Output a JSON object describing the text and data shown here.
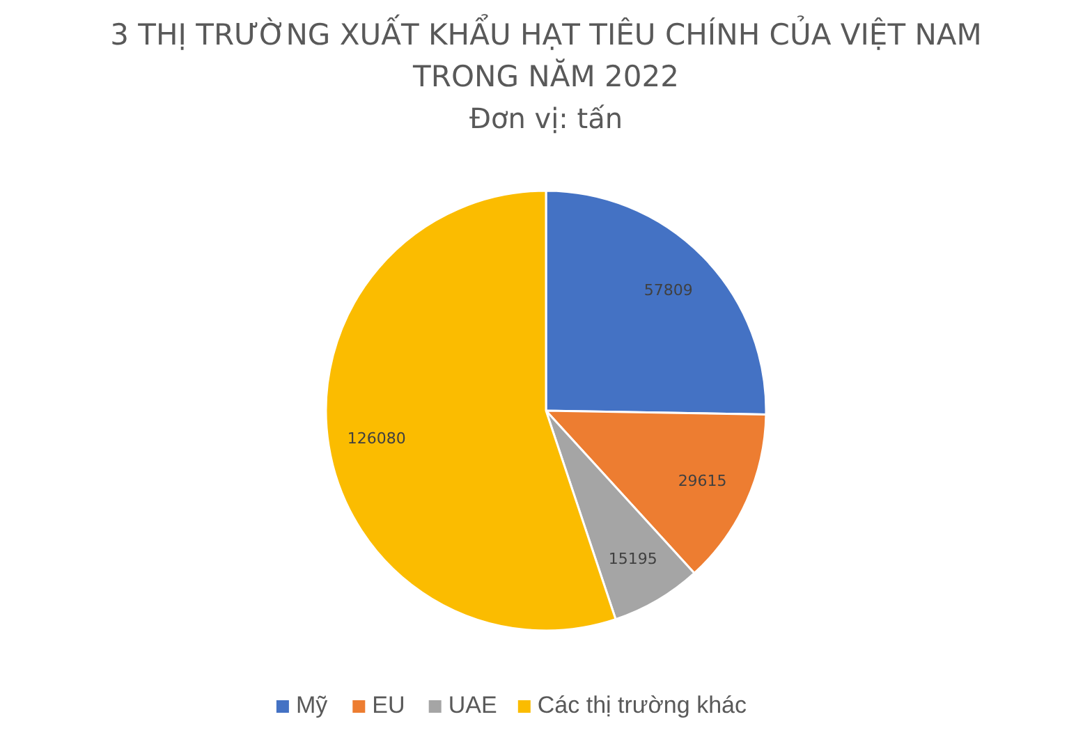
{
  "chart_data": {
    "type": "pie",
    "title": "3 THỊ TRƯỜNG XUẤT KHẨU HẠT TIÊU CHÍNH CỦA VIỆT NAM\nTRONG NĂM 2022",
    "subtitle": "Đơn vị: tấn",
    "categories": [
      "Mỹ",
      "EU",
      "UAE",
      "Các thị trường khác"
    ],
    "values": [
      57809,
      29615,
      15195,
      126080
    ],
    "colors": [
      "#4472c4",
      "#ed7d31",
      "#a5a5a5",
      "#fbbc00"
    ],
    "data_labels": true,
    "legend": "bottom"
  }
}
